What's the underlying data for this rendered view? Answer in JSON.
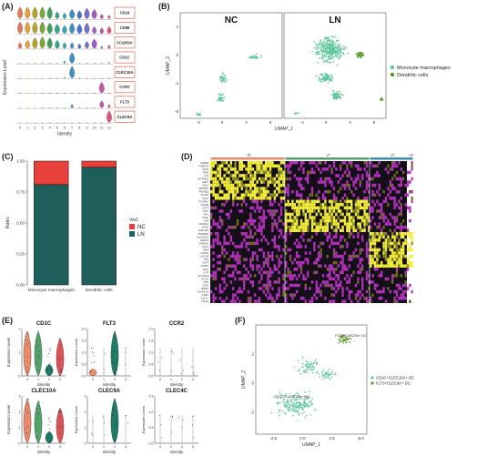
{
  "panels": {
    "A": {
      "label": "(A)",
      "ylabel": "Expression Level",
      "xlabel": "Identity",
      "genes": [
        "CD14",
        "CD68",
        "FCGR3A",
        "CD1C",
        "CLEC10A",
        "CCR7",
        "FLT3",
        "CLEC9A"
      ],
      "clusters": [
        "0",
        "1",
        "2",
        "3",
        "4",
        "5",
        "6",
        "7",
        "8",
        "9",
        "10",
        "11",
        "12"
      ]
    },
    "B": {
      "label": "(B)",
      "facets": [
        "NC",
        "LN"
      ],
      "xlabel": "UMAP_1",
      "ylabel": "UMAP_2",
      "xticks": [
        "-4",
        "0",
        "4",
        "8"
      ],
      "yticks": [
        "4",
        "0",
        "-4",
        "-8"
      ],
      "legend": [
        "Monocyte macrophages",
        "Dendritic cells"
      ]
    },
    "C": {
      "label": "(C)",
      "ylabel": "Ratio",
      "legend_title": "Var1",
      "legend": [
        "NC",
        "LN"
      ]
    },
    "D": {
      "label": "(D)",
      "groups": [
        "0",
        "1",
        "2",
        "3"
      ],
      "genes": [
        "S100A8",
        "FCER1G",
        "FCN1",
        "IFI30",
        "LYZ",
        "MT-RNR2",
        "GAPT",
        "CD14",
        "ZFP36L2",
        "RNASE2",
        "PLAC8",
        "CSTA",
        "FCGR3A",
        "IFITM3",
        "CST3",
        "LST1",
        "AIF1",
        "C1QA",
        "IL1B",
        "CDKN1C",
        "SOD2",
        "CLEC10A",
        "ZNF385A",
        "HLA-DQA1",
        "NDRG2",
        "FCER1A",
        "CD1C",
        "PKIB",
        "CXCR4",
        "CLEC9A",
        "TXN",
        "CCR7",
        "LAMP3",
        "IDO1",
        "IL7R",
        "SLCO5A1",
        "CCL19",
        "GSN",
        "CD52",
        "BIRC3",
        "CACNA1G",
        "IL2RA",
        "CCL17",
        "CCL22"
      ]
    },
    "E": {
      "label": "(E)",
      "genes": [
        "CD1C",
        "FLT3",
        "CCR2",
        "CLEC10A",
        "CLEC9A",
        "CLEC4C"
      ],
      "ylabel": "Expression Level",
      "xlabel": "Identity",
      "xticks": [
        "0",
        "1",
        "2",
        "3"
      ]
    },
    "F": {
      "label": "(F)",
      "xlabel": "UMAP_1",
      "ylabel": "UMAP_2",
      "xticks": [
        "-2.5",
        "0.0",
        "2.5",
        "5.0"
      ],
      "yticks": [
        "2",
        "0",
        "-2"
      ],
      "annot1": "FLT3+CLEC9A+ DC",
      "annot2": "CD1C+CLEC10A+ DC",
      "legend": [
        "CD1C+CLEC10A+ DC",
        "FLT3+CLEC9A+ DC"
      ]
    }
  },
  "chart_data": [
    {
      "type": "bar",
      "panel": "C",
      "categories": [
        "Monocyte macrophages",
        "Dendritic cells"
      ],
      "series": [
        {
          "name": "LN",
          "values": [
            0.81,
            0.95
          ]
        },
        {
          "name": "NC",
          "values": [
            0.19,
            0.05
          ]
        }
      ],
      "ylabel": "Ratio",
      "yticks": [
        "0.00",
        "0.25",
        "0.50",
        "0.75",
        "1.00"
      ],
      "ylim": [
        0,
        1
      ]
    }
  ],
  "colors": {
    "mono": "#5cc59a",
    "dc": "#5b9a2a",
    "nc": "#e8403a",
    "ln": "#1e5f5b"
  }
}
